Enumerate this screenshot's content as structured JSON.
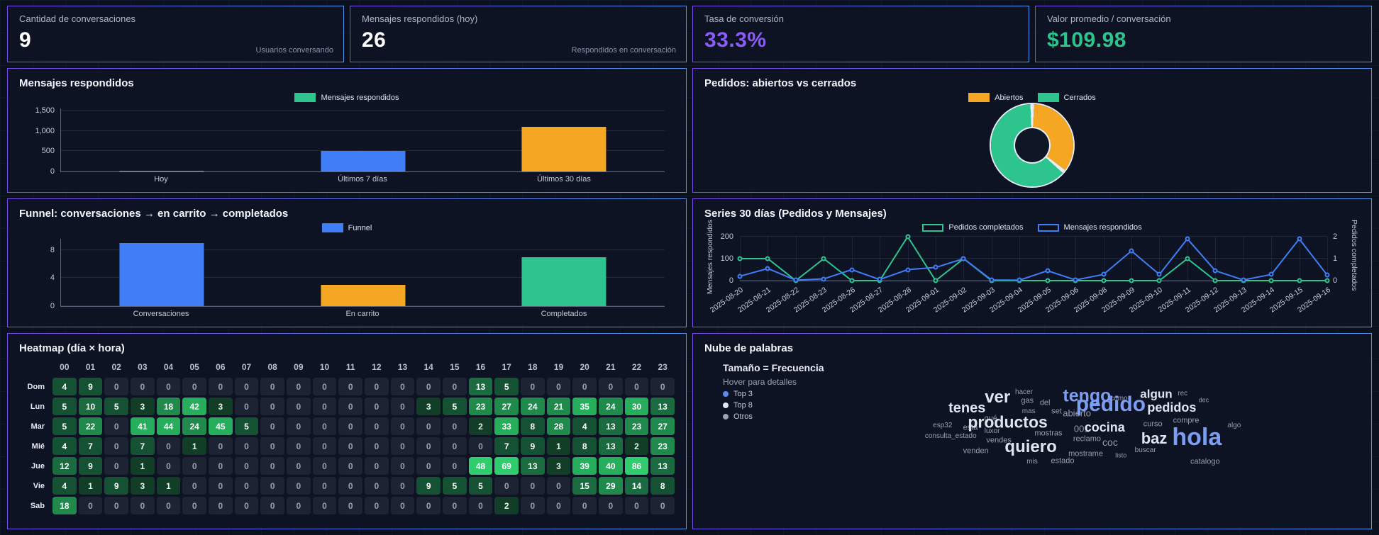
{
  "colors": {
    "green": "#2ec48e",
    "blue": "#3f7ef6",
    "orange": "#f5a622",
    "top3_blue": "#5f8bef",
    "top8_white": "#e3e8f1",
    "otros_gray": "#9aa2b4"
  },
  "cards": [
    {
      "label": "Cantidad de conversaciones",
      "value": "9",
      "sub": "Usuarios conversando",
      "style": "white"
    },
    {
      "label": "Mensajes respondidos (hoy)",
      "value": "26",
      "sub": "Respondidos en conversación",
      "style": "white"
    },
    {
      "label": "Tasa de conversión",
      "value": "33.3%",
      "sub": "",
      "style": "gradient"
    },
    {
      "label": "Valor promedio / conversación",
      "value": "$109.98",
      "sub": "",
      "style": "green"
    }
  ],
  "chart_data": [
    {
      "type": "bar",
      "title": "Mensajes respondidos",
      "categories": [
        "Hoy",
        "Últimos 7 días",
        "Últimos 30 días"
      ],
      "values": [
        26,
        510,
        1100
      ],
      "bar_colors": [
        "green",
        "blue",
        "orange"
      ],
      "legend": [
        {
          "label": "Mensajes respondidos",
          "color": "green",
          "style": "fill"
        }
      ],
      "yticks": [
        0,
        500,
        1000,
        1500
      ],
      "ytick_labels": [
        "0",
        "500",
        "1,000",
        "1,500"
      ],
      "ylim": [
        0,
        1560
      ]
    },
    {
      "type": "pie",
      "title": "Pedidos: abiertos vs cerrados",
      "labels": [
        "Abiertos",
        "Cerrados"
      ],
      "values_pct": [
        36,
        64
      ],
      "slice_colors": [
        "orange",
        "green"
      ],
      "legend": [
        {
          "label": "Abiertos",
          "color": "orange",
          "style": "fill"
        },
        {
          "label": "Cerrados",
          "color": "green",
          "style": "fill"
        }
      ]
    },
    {
      "type": "bar",
      "title": "Funnel: conversaciones → en carrito → completados",
      "categories": [
        "Conversaciones",
        "En carrito",
        "Completados"
      ],
      "values": [
        9,
        3,
        7
      ],
      "bar_colors": [
        "blue",
        "orange",
        "green"
      ],
      "legend": [
        {
          "label": "Funnel",
          "color": "blue",
          "style": "fill"
        }
      ],
      "yticks": [
        0,
        4,
        8
      ],
      "ytick_labels": [
        "0",
        "4",
        "8"
      ],
      "ylim": [
        0,
        9.6
      ]
    },
    {
      "type": "line",
      "title": "Series 30 días (Pedidos y Mensajes)",
      "x": [
        "2025-08-20",
        "2025-08-21",
        "2025-08-22",
        "2025-08-23",
        "2025-08-26",
        "2025-08-27",
        "2025-08-28",
        "2025-09-01",
        "2025-09-02",
        "2025-09-03",
        "2025-09-04",
        "2025-09-05",
        "2025-09-06",
        "2025-09-08",
        "2025-09-09",
        "2025-09-10",
        "2025-09-11",
        "2025-09-12",
        "2025-09-13",
        "2025-09-14",
        "2025-09-15",
        "2025-09-16"
      ],
      "series": [
        {
          "name": "Pedidos completados",
          "color": "green",
          "axis": "right",
          "values": [
            1,
            1,
            0,
            1,
            0,
            0,
            2,
            0,
            1,
            0,
            0,
            0,
            0,
            0,
            0,
            0,
            1,
            0,
            0,
            0,
            0,
            0
          ]
        },
        {
          "name": "Mensajes respondidos",
          "color": "blue",
          "axis": "left",
          "values": [
            20,
            55,
            2,
            8,
            50,
            5,
            50,
            60,
            100,
            3,
            2,
            45,
            3,
            28,
            135,
            28,
            190,
            45,
            3,
            28,
            190,
            25
          ]
        }
      ],
      "left_axis": {
        "title": "Mensajes respondidos",
        "ticks": [
          0,
          100,
          200
        ],
        "max": 200
      },
      "right_axis": {
        "title": "Pedidos completados",
        "ticks": [
          0,
          1,
          2
        ],
        "max": 2
      },
      "legend": [
        {
          "label": "Pedidos completados",
          "color": "green",
          "style": "line"
        },
        {
          "label": "Mensajes respondidos",
          "color": "blue",
          "style": "line"
        }
      ]
    },
    {
      "type": "heatmap",
      "title": "Heatmap (día × hora)",
      "hours": [
        "00",
        "01",
        "02",
        "03",
        "04",
        "05",
        "06",
        "07",
        "08",
        "09",
        "10",
        "11",
        "12",
        "13",
        "14",
        "15",
        "16",
        "17",
        "18",
        "19",
        "20",
        "21",
        "22",
        "23"
      ],
      "days": [
        "Dom",
        "Lun",
        "Mar",
        "Mié",
        "Jue",
        "Vie",
        "Sab"
      ],
      "values": [
        [
          4,
          9,
          0,
          0,
          0,
          0,
          0,
          0,
          0,
          0,
          0,
          0,
          0,
          0,
          0,
          0,
          13,
          5,
          0,
          0,
          0,
          0,
          0,
          0
        ],
        [
          5,
          10,
          5,
          3,
          18,
          42,
          3,
          0,
          0,
          0,
          0,
          0,
          0,
          0,
          3,
          5,
          23,
          27,
          24,
          21,
          35,
          24,
          30,
          13
        ],
        [
          5,
          22,
          0,
          41,
          44,
          24,
          45,
          5,
          0,
          0,
          0,
          0,
          0,
          0,
          0,
          0,
          2,
          33,
          8,
          28,
          4,
          13,
          23,
          27
        ],
        [
          4,
          7,
          0,
          7,
          0,
          1,
          0,
          0,
          0,
          0,
          0,
          0,
          0,
          0,
          0,
          0,
          0,
          7,
          9,
          1,
          8,
          13,
          2,
          23
        ],
        [
          12,
          9,
          0,
          1,
          0,
          0,
          0,
          0,
          0,
          0,
          0,
          0,
          0,
          0,
          0,
          0,
          48,
          69,
          13,
          3,
          39,
          40,
          86,
          13
        ],
        [
          4,
          1,
          9,
          3,
          1,
          0,
          0,
          0,
          0,
          0,
          0,
          0,
          0,
          0,
          9,
          5,
          5,
          0,
          0,
          0,
          15,
          29,
          14,
          8
        ],
        [
          18,
          0,
          0,
          0,
          0,
          0,
          0,
          0,
          0,
          0,
          0,
          0,
          0,
          0,
          0,
          0,
          0,
          2,
          0,
          0,
          0,
          0,
          0,
          0
        ]
      ]
    },
    {
      "type": "wordcloud",
      "title": "Nube de palabras",
      "legend": {
        "title": "Tamaño = Frecuencia",
        "subtitle": "Hover para detalles",
        "items": [
          {
            "label": "Top 3",
            "tier": "top3"
          },
          {
            "label": "Top 8",
            "tier": "top8"
          },
          {
            "label": "Otros",
            "tier": "otros"
          }
        ]
      },
      "words": [
        {
          "t": "hacer",
          "tier": "otros",
          "size": 10,
          "x": 48.8,
          "y": 30
        },
        {
          "t": "ver",
          "tier": "top8",
          "size": 24,
          "x": 44.9,
          "y": 32.7
        },
        {
          "t": "gas",
          "tier": "otros",
          "size": 11,
          "x": 49.3,
          "y": 34.6
        },
        {
          "t": "tenes",
          "tier": "top8",
          "size": 20,
          "x": 40.4,
          "y": 38.1
        },
        {
          "t": "mas",
          "tier": "otros",
          "size": 10,
          "x": 49.5,
          "y": 40.0
        },
        {
          "t": "del",
          "tier": "otros",
          "size": 11,
          "x": 51.9,
          "y": 35.8
        },
        {
          "t": "set",
          "tier": "otros",
          "size": 11,
          "x": 53.6,
          "y": 40.0
        },
        {
          "t": "abierto",
          "tier": "otros",
          "size": 13,
          "x": 56.6,
          "y": 40.8
        },
        {
          "t": "tengo",
          "tier": "top3",
          "size": 25,
          "x": 58.1,
          "y": 31.9
        },
        {
          "t": "como",
          "tier": "otros",
          "size": 10,
          "x": 62.8,
          "y": 33.5
        },
        {
          "t": "algun",
          "tier": "top8",
          "size": 17,
          "x": 68.3,
          "y": 30.8
        },
        {
          "t": "rec",
          "tier": "otros",
          "size": 10,
          "x": 72.2,
          "y": 30.8
        },
        {
          "t": "dec",
          "tier": "otros",
          "size": 9,
          "x": 75.3,
          "y": 34.2
        },
        {
          "t": "pedido",
          "tier": "top3",
          "size": 30,
          "x": 61.6,
          "y": 36.5
        },
        {
          "t": "pedidos",
          "tier": "top8",
          "size": 18,
          "x": 70.6,
          "y": 37.7
        },
        {
          "t": "qué",
          "tier": "otros",
          "size": 11,
          "x": 43.9,
          "y": 43.5
        },
        {
          "t": "esp32",
          "tier": "otros",
          "size": 10,
          "x": 36.8,
          "y": 47.3
        },
        {
          "t": "esta",
          "tier": "otros",
          "size": 11,
          "x": 40.9,
          "y": 48.5
        },
        {
          "t": "luxor",
          "tier": "otros",
          "size": 10,
          "x": 44.1,
          "y": 50.0
        },
        {
          "t": "productos",
          "tier": "top8",
          "size": 23,
          "x": 46.4,
          "y": 45.4
        },
        {
          "t": "mostras",
          "tier": "otros",
          "size": 11,
          "x": 52.4,
          "y": 51.2
        },
        {
          "t": "001",
          "tier": "otros",
          "size": 13,
          "x": 57.3,
          "y": 48.8
        },
        {
          "t": "cocina",
          "tier": "top8",
          "size": 18,
          "x": 60.7,
          "y": 48.1
        },
        {
          "t": "curso",
          "tier": "otros",
          "size": 11,
          "x": 67.8,
          "y": 46.5
        },
        {
          "t": "compre",
          "tier": "otros",
          "size": 11,
          "x": 72.7,
          "y": 44.6
        },
        {
          "t": "algo",
          "tier": "otros",
          "size": 10,
          "x": 79.8,
          "y": 47.3
        },
        {
          "t": "consulta_estado",
          "tier": "otros",
          "size": 10,
          "x": 38.0,
          "y": 52.7
        },
        {
          "t": "vendes",
          "tier": "otros",
          "size": 11,
          "x": 45.1,
          "y": 55.0
        },
        {
          "t": "reclamo",
          "tier": "otros",
          "size": 11,
          "x": 58.1,
          "y": 54.2
        },
        {
          "t": "coc",
          "tier": "otros",
          "size": 14,
          "x": 61.5,
          "y": 55.8
        },
        {
          "t": "baz",
          "tier": "top8",
          "size": 22,
          "x": 68.0,
          "y": 53.8
        },
        {
          "t": "hola",
          "tier": "top3",
          "size": 34,
          "x": 74.3,
          "y": 53.1
        },
        {
          "t": "venden",
          "tier": "otros",
          "size": 11,
          "x": 41.7,
          "y": 60.4
        },
        {
          "t": "quiero",
          "tier": "top8",
          "size": 24,
          "x": 49.8,
          "y": 58.1
        },
        {
          "t": "mostrame",
          "tier": "otros",
          "size": 11,
          "x": 57.9,
          "y": 61.9
        },
        {
          "t": "listo",
          "tier": "otros",
          "size": 9,
          "x": 63.1,
          "y": 62.7
        },
        {
          "t": "buscar",
          "tier": "otros",
          "size": 10,
          "x": 66.7,
          "y": 60.0
        },
        {
          "t": "mis",
          "tier": "otros",
          "size": 10,
          "x": 50.0,
          "y": 65.8
        },
        {
          "t": "estado",
          "tier": "otros",
          "size": 11,
          "x": 54.5,
          "y": 65.4
        },
        {
          "t": "catalogo",
          "tier": "otros",
          "size": 11,
          "x": 75.5,
          "y": 65.8
        }
      ]
    }
  ]
}
